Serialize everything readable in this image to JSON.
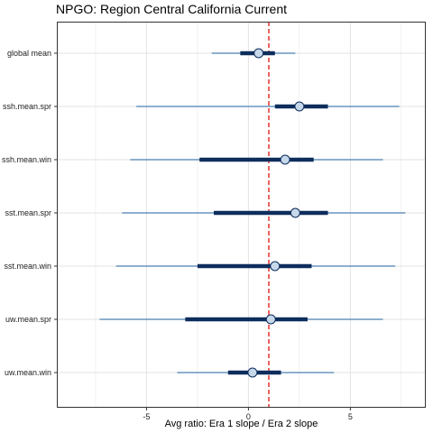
{
  "chart_data": {
    "type": "forest",
    "title": "NPGO: Region Central California Current",
    "xlabel": "Avg ratio: Era 1 slope / Era 2 slope",
    "ylabel": "",
    "xlim": [
      -9.4,
      8.7
    ],
    "xticks": [
      -5,
      0,
      5
    ],
    "xtick_labels": [
      "-5",
      "0",
      "5"
    ],
    "reference_line": 1,
    "grid": true,
    "categories": [
      "global mean",
      "ssh.mean.spr",
      "ssh.mean.win",
      "sst.mean.spr",
      "sst.mean.win",
      "uw.mean.spr",
      "uw.mean.win"
    ],
    "estimates": [
      {
        "name": "global mean",
        "estimate": 0.5,
        "ci50": [
          -0.4,
          1.3
        ],
        "ci95": [
          -1.8,
          2.3
        ]
      },
      {
        "name": "ssh.mean.spr",
        "estimate": 2.5,
        "ci50": [
          1.3,
          3.9
        ],
        "ci95": [
          -5.5,
          7.4
        ]
      },
      {
        "name": "ssh.mean.win",
        "estimate": 1.8,
        "ci50": [
          -2.4,
          3.2
        ],
        "ci95": [
          -5.8,
          6.6
        ]
      },
      {
        "name": "sst.mean.spr",
        "estimate": 2.3,
        "ci50": [
          -1.7,
          3.9
        ],
        "ci95": [
          -6.2,
          7.7
        ]
      },
      {
        "name": "sst.mean.win",
        "estimate": 1.3,
        "ci50": [
          -2.5,
          3.1
        ],
        "ci95": [
          -6.5,
          7.2
        ]
      },
      {
        "name": "uw.mean.spr",
        "estimate": 1.1,
        "ci50": [
          -3.1,
          2.9
        ],
        "ci95": [
          -7.3,
          6.6
        ]
      },
      {
        "name": "uw.mean.win",
        "estimate": 0.2,
        "ci50": [
          -1.0,
          1.6
        ],
        "ci95": [
          -3.5,
          4.2
        ]
      }
    ],
    "colors": {
      "ci95": "#4a7fb0",
      "ci50": "#0d2d5c",
      "point_fill": "#c6d8ea",
      "point_stroke": "#0d2d5c",
      "reference": "#e8302a",
      "grid": "#e3e3e3",
      "panel_border": "#333333"
    }
  }
}
